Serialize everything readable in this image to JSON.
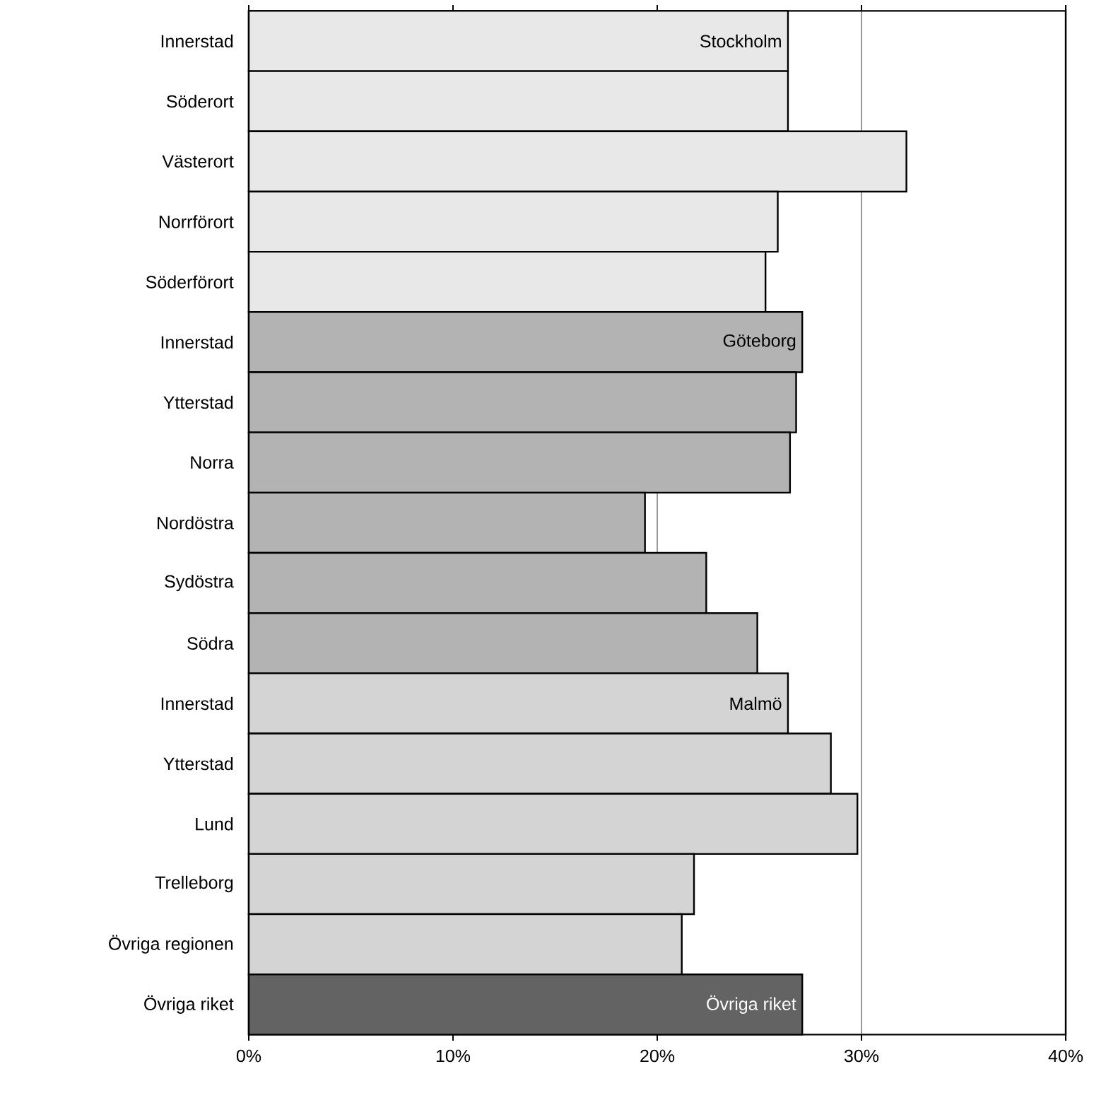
{
  "chart_data": {
    "type": "bar",
    "orientation": "horizontal",
    "grid": "x",
    "categories": [
      "Innerstad",
      "Söderort",
      "Västerort",
      "Norrförort",
      "Söderförort",
      "Innerstad",
      "Ytterstad",
      "Norra",
      "Nordöstra",
      "Sydöstra",
      "Södra",
      "Innerstad",
      "Ytterstad",
      "Lund",
      "Trelleborg",
      "Övriga regionen",
      "Övriga riket"
    ],
    "series": [
      {
        "name": "Stockholm",
        "color": "#e8e8e8",
        "values": [
          26.4,
          26.4,
          32.2,
          25.9,
          25.3,
          null,
          null,
          null,
          null,
          null,
          null,
          null,
          null,
          null,
          null,
          null,
          null
        ]
      },
      {
        "name": "Göteborg",
        "color": "#b3b3b3",
        "values": [
          null,
          null,
          null,
          null,
          null,
          27.1,
          26.8,
          26.5,
          19.4,
          22.4,
          24.9,
          null,
          null,
          null,
          null,
          null,
          null
        ]
      },
      {
        "name": "Malmö",
        "color": "#d4d4d4",
        "values": [
          null,
          null,
          null,
          null,
          null,
          null,
          null,
          null,
          null,
          null,
          null,
          26.4,
          28.5,
          29.8,
          21.8,
          21.2,
          null
        ]
      },
      {
        "name": "Övriga riket",
        "color": "#636363",
        "values": [
          null,
          null,
          null,
          null,
          null,
          null,
          null,
          null,
          null,
          null,
          null,
          null,
          null,
          null,
          null,
          null,
          27.1
        ]
      }
    ],
    "xlim": [
      0,
      40
    ],
    "xticks": [
      {
        "value": 0,
        "label": "0%"
      },
      {
        "value": 10,
        "label": "10%"
      },
      {
        "value": 20,
        "label": "20%"
      },
      {
        "value": 30,
        "label": "30%"
      },
      {
        "value": 40,
        "label": "40%"
      }
    ]
  }
}
